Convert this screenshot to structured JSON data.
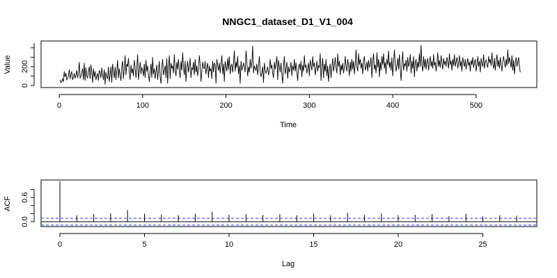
{
  "chart_data": [
    {
      "type": "line",
      "title": "NNGC1_dataset_D1_V1_004",
      "xlabel": "Time",
      "ylabel": "Value",
      "xlim": [
        1,
        550
      ],
      "ylim": [
        0,
        450
      ],
      "xticks": [
        0,
        100,
        200,
        300,
        400,
        500
      ],
      "yticks": [
        0,
        200
      ],
      "grid": false,
      "series": [
        {
          "values": [
            60,
            30,
            45,
            70,
            40,
            150,
            90,
            130,
            60,
            80,
            100,
            170,
            70,
            120,
            150,
            60,
            90,
            130,
            75,
            110,
            160,
            80,
            130,
            250,
            80,
            95,
            140,
            180,
            60,
            240,
            50,
            190,
            100,
            80,
            150,
            200,
            70,
            220,
            140,
            30,
            180,
            90,
            150,
            60,
            100,
            130,
            50,
            160,
            140,
            80,
            190,
            120,
            60,
            170,
            10,
            140,
            90,
            70,
            200,
            40,
            110,
            200,
            30,
            230,
            150,
            80,
            200,
            60,
            160,
            270,
            80,
            180,
            110,
            50,
            200,
            260,
            70,
            180,
            320,
            110,
            230,
            200,
            290,
            140,
            60,
            220,
            130,
            180,
            100,
            270,
            200,
            80,
            180,
            330,
            60,
            150,
            250,
            120,
            190,
            170,
            100,
            230,
            80,
            270,
            150,
            210,
            110,
            40,
            140,
            230,
            80,
            300,
            120,
            180,
            70,
            150,
            220,
            60,
            160,
            260,
            90,
            20,
            200,
            280,
            110,
            160,
            210,
            80,
            290,
            20,
            200,
            320,
            70,
            240,
            180,
            210,
            130,
            330,
            170,
            100,
            250,
            170,
            280,
            160,
            80,
            260,
            160,
            350,
            200,
            110,
            260,
            40,
            180,
            260,
            140,
            200,
            290,
            80,
            190,
            170,
            250,
            110,
            280,
            140,
            210,
            100,
            180,
            320,
            220,
            40,
            150,
            250,
            190,
            180,
            260,
            120,
            190,
            240,
            80,
            210,
            150,
            180,
            70,
            260,
            140,
            240,
            220,
            20,
            280,
            210,
            160,
            240,
            130,
            220,
            320,
            120,
            230,
            40,
            260,
            200,
            150,
            290,
            170,
            310,
            120,
            200,
            230,
            140,
            230,
            370,
            150,
            250,
            190,
            310,
            120,
            210,
            20,
            260,
            160,
            190,
            240,
            200,
            140,
            370,
            250,
            100,
            200,
            140,
            280,
            180,
            240,
            420,
            130,
            210,
            180,
            160,
            230,
            110,
            200,
            310,
            150,
            90,
            140,
            200,
            30,
            240,
            160,
            130,
            160,
            200,
            110,
            150,
            280,
            180,
            220,
            130,
            80,
            250,
            170,
            230,
            310,
            60,
            270,
            200,
            140,
            240,
            120,
            20,
            200,
            310,
            120,
            180,
            250,
            70,
            200,
            140,
            180,
            250,
            100,
            210,
            160,
            280,
            150,
            240,
            140,
            50,
            200,
            230,
            160,
            260,
            90,
            220,
            150,
            320,
            190,
            220,
            130,
            180,
            240,
            100,
            270,
            220,
            160,
            310,
            200,
            240,
            110,
            180,
            260,
            150,
            210,
            190,
            340,
            50,
            200,
            290,
            80,
            230,
            150,
            280,
            100,
            210,
            40,
            160,
            230,
            80,
            190,
            290,
            150,
            210,
            300,
            190,
            130,
            340,
            200,
            260,
            110,
            220,
            160,
            240,
            130,
            190,
            310,
            200,
            150,
            280,
            210,
            100,
            250,
            150,
            280,
            170,
            260,
            120,
            220,
            380,
            200,
            150,
            340,
            220,
            280,
            180,
            240,
            120,
            260,
            310,
            160,
            200,
            250,
            150,
            270,
            190,
            220,
            300,
            80,
            250,
            340,
            170,
            220,
            130,
            350,
            190,
            280,
            90,
            250,
            160,
            310,
            220,
            340,
            180,
            250,
            120,
            280,
            220,
            370,
            190,
            250,
            160,
            300,
            100,
            230,
            380,
            240,
            150,
            210,
            290,
            170,
            330,
            180,
            50,
            240,
            360,
            160,
            230,
            210,
            270,
            150,
            300,
            200,
            240,
            330,
            130,
            260,
            180,
            310,
            90,
            240,
            280,
            150,
            250,
            190,
            340,
            200,
            430,
            210,
            150,
            310,
            190,
            280,
            170,
            250,
            290,
            160,
            240,
            310,
            200,
            260,
            180,
            330,
            210,
            250,
            150,
            230,
            350,
            200,
            270,
            190,
            320,
            240,
            170,
            290,
            220,
            260,
            200,
            300,
            250,
            180,
            340,
            220,
            260,
            160,
            280,
            210,
            330,
            200,
            250,
            300,
            180,
            240,
            320,
            200,
            260,
            150,
            300,
            240,
            200,
            280,
            170,
            230,
            290,
            210,
            250,
            150,
            270,
            220,
            300,
            190,
            240,
            280,
            150,
            220,
            310,
            200,
            260,
            140,
            290,
            230,
            200,
            330,
            180,
            250,
            270,
            220,
            190,
            310,
            240,
            280,
            210,
            350,
            230,
            180,
            290,
            160,
            250,
            330,
            200,
            270,
            180,
            300,
            220,
            150,
            260,
            310,
            240,
            190,
            280,
            210,
            380,
            230,
            300,
            250,
            190,
            320,
            160,
            270,
            120,
            240,
            300,
            200,
            250,
            300,
            200,
            140
          ]
        }
      ]
    },
    {
      "type": "bar",
      "title": "",
      "xlabel": "Lag",
      "ylabel": "ACF",
      "xlim": [
        -0.5,
        28
      ],
      "ylim": [
        -0.12,
        1.0
      ],
      "xticks": [
        0,
        5,
        10,
        15,
        20,
        25
      ],
      "yticks": [
        0.0,
        0.6
      ],
      "ytick_labels": [
        "0.0",
        "0.6"
      ],
      "grid": false,
      "confidence_band": 0.085,
      "colors": {
        "confidence_band": "#3333ff",
        "zero_line": "#000000",
        "bars": "#000000"
      },
      "lags": [
        0,
        1,
        2,
        3,
        4,
        5,
        6,
        7,
        8,
        9,
        10,
        11,
        12,
        13,
        14,
        15,
        16,
        17,
        18,
        19,
        20,
        21,
        22,
        23,
        24,
        25,
        26,
        27
      ],
      "values": [
        1.0,
        0.16,
        0.19,
        0.21,
        0.29,
        0.2,
        0.18,
        0.16,
        0.2,
        0.25,
        0.17,
        0.19,
        0.17,
        0.19,
        0.16,
        0.2,
        0.16,
        0.22,
        0.17,
        0.21,
        0.16,
        0.17,
        0.19,
        0.14,
        0.2,
        0.13,
        0.16,
        0.15
      ]
    }
  ]
}
